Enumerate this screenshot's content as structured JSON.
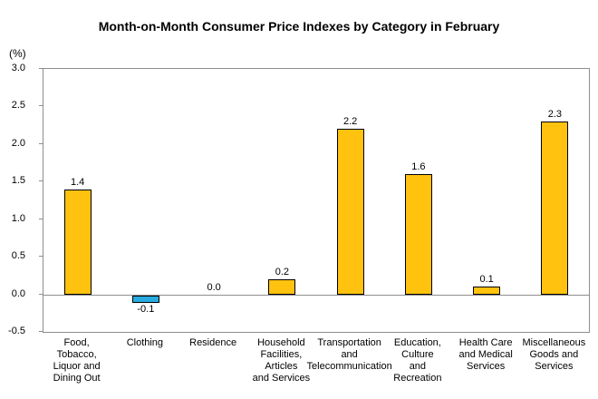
{
  "page": {
    "title": "Month-on-Month Consumer Price Indexes by Category in February",
    "y_unit_label": "(%)"
  },
  "chart_data": {
    "type": "bar",
    "title": "Month-on-Month Consumer Price Indexes by Category in February",
    "xlabel": "",
    "ylabel": "(%)",
    "ylim": [
      -0.5,
      3.0
    ],
    "ytick_step": 0.5,
    "yticks": [
      "3.0",
      "2.5",
      "2.0",
      "1.5",
      "1.0",
      "0.5",
      "0.0",
      "-0.5"
    ],
    "grid": false,
    "legend": "none",
    "categories": [
      "Food, Tobacco, Liquor and Dining Out",
      "Clothing",
      "Residence",
      "Household Facilities, Articles and Services",
      "Transportation and Telecommunication",
      "Education, Culture and Recreation",
      "Health Care and Medical Services",
      "Miscellaneous Goods and Services"
    ],
    "category_label_lines": [
      "Food,\nTobacco,\nLiquor and\nDining Out",
      "Clothing",
      "Residence",
      "Household\nFacilities,\nArticles\nand Services",
      "Transportation\nand\nTelecommunication",
      "Education,\nCulture\nand\nRecreation",
      "Health Care\nand Medical\nServices",
      "Miscellaneous\nGoods and\nServices"
    ],
    "values": [
      1.4,
      -0.1,
      0.0,
      0.2,
      2.2,
      1.6,
      0.1,
      2.3
    ],
    "value_labels": [
      "1.4",
      "-0.1",
      "0.0",
      "0.2",
      "2.2",
      "1.6",
      "0.1",
      "2.3"
    ],
    "colors": {
      "bar_positive": "#FFC20E",
      "bar_negative": "#29ABE2",
      "bar_border": "#000000",
      "axis": "#8E8E8E",
      "text": "#000000",
      "background": "#FFFFFF"
    }
  }
}
